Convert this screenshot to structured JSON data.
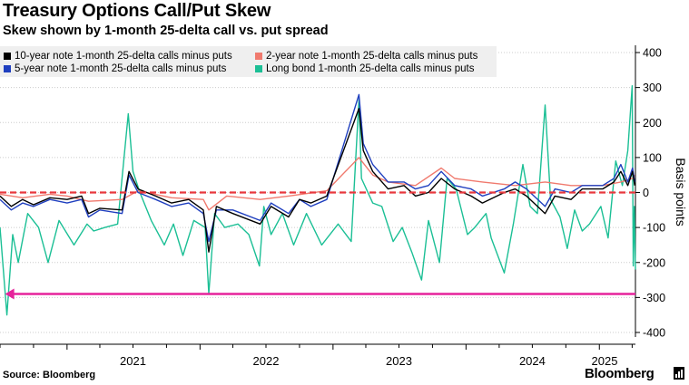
{
  "header": {
    "title": "Treasury Options Call/Put Skew",
    "subtitle": "Skew shown by 1-month 25-delta call vs. put spread"
  },
  "footer": {
    "source": "Source: Bloomberg",
    "brand": "Bloomberg"
  },
  "colors": {
    "ten_year": "#000000",
    "two_year": "#f07a6e",
    "five_year": "#1f3fbf",
    "long_bond": "#1bbf95",
    "zero_line": "#e8383d",
    "arrow": "#e6229b",
    "grid": "#cccccc"
  },
  "chart_data": {
    "type": "line",
    "title": "Treasury Options Call/Put Skew",
    "subtitle": "Skew shown by 1-month 25-delta call vs. put spread",
    "xlabel": "",
    "ylabel": "Basis points",
    "ylim": [
      -400,
      400
    ],
    "yticks": [
      400,
      300,
      200,
      100,
      0,
      -100,
      -200,
      -300,
      -400
    ],
    "x_tick_labels": [
      "2021",
      "2022",
      "2023",
      "2024",
      "2025"
    ],
    "xlim": [
      "2020-07-01",
      "2025-04-10"
    ],
    "grid": "horizontal dotted",
    "legend_position": "top-left",
    "reference_line": {
      "y": 0,
      "style": "dashed"
    },
    "annotation": {
      "type": "arrow",
      "y": -290,
      "from": "2025-04-10",
      "to": "2020-07-15"
    },
    "series": [
      {
        "name": "10-year note 1-month 25-delta calls minus puts",
        "points": [
          [
            "2020-07-01",
            -10
          ],
          [
            "2020-08-01",
            -40
          ],
          [
            "2020-09-01",
            -20
          ],
          [
            "2020-10-01",
            -35
          ],
          [
            "2020-11-15",
            -15
          ],
          [
            "2021-01-01",
            -20
          ],
          [
            "2021-02-10",
            -10
          ],
          [
            "2021-03-01",
            -60
          ],
          [
            "2021-04-01",
            -45
          ],
          [
            "2021-06-01",
            -50
          ],
          [
            "2021-06-20",
            60
          ],
          [
            "2021-07-15",
            10
          ],
          [
            "2021-09-01",
            -10
          ],
          [
            "2021-10-15",
            -30
          ],
          [
            "2021-12-01",
            -20
          ],
          [
            "2022-01-10",
            -50
          ],
          [
            "2022-01-25",
            -170
          ],
          [
            "2022-02-15",
            -40
          ],
          [
            "2022-04-01",
            -60
          ],
          [
            "2022-06-15",
            -90
          ],
          [
            "2022-07-15",
            -40
          ],
          [
            "2022-09-01",
            -70
          ],
          [
            "2022-10-01",
            -20
          ],
          [
            "2022-11-01",
            -30
          ],
          [
            "2022-12-15",
            -10
          ],
          [
            "2023-03-13",
            240
          ],
          [
            "2023-03-25",
            120
          ],
          [
            "2023-04-20",
            60
          ],
          [
            "2023-06-01",
            10
          ],
          [
            "2023-07-15",
            20
          ],
          [
            "2023-08-15",
            -10
          ],
          [
            "2023-09-20",
            0
          ],
          [
            "2023-10-25",
            40
          ],
          [
            "2023-12-01",
            10
          ],
          [
            "2024-01-15",
            -10
          ],
          [
            "2024-02-15",
            -30
          ],
          [
            "2024-04-15",
            0
          ],
          [
            "2024-05-15",
            10
          ],
          [
            "2024-06-15",
            -10
          ],
          [
            "2024-08-05",
            -60
          ],
          [
            "2024-09-01",
            -10
          ],
          [
            "2024-10-15",
            -20
          ],
          [
            "2024-11-15",
            10
          ],
          [
            "2025-01-10",
            10
          ],
          [
            "2025-02-10",
            30
          ],
          [
            "2025-03-01",
            60
          ],
          [
            "2025-03-20",
            20
          ],
          [
            "2025-04-02",
            60
          ],
          [
            "2025-04-05",
            40
          ],
          [
            "2025-04-08",
            20
          ]
        ]
      },
      {
        "name": "2-year note 1-month 25-delta calls minus puts",
        "points": [
          [
            "2020-07-01",
            -5
          ],
          [
            "2020-09-01",
            -15
          ],
          [
            "2020-11-15",
            -5
          ],
          [
            "2021-01-01",
            -10
          ],
          [
            "2021-03-01",
            -25
          ],
          [
            "2021-06-01",
            -20
          ],
          [
            "2021-07-15",
            5
          ],
          [
            "2021-10-15",
            -15
          ],
          [
            "2022-01-10",
            -20
          ],
          [
            "2022-01-25",
            -50
          ],
          [
            "2022-03-15",
            -10
          ],
          [
            "2022-06-15",
            -20
          ],
          [
            "2022-09-01",
            -10
          ],
          [
            "2022-12-15",
            5
          ],
          [
            "2023-03-13",
            100
          ],
          [
            "2023-04-20",
            50
          ],
          [
            "2023-06-01",
            30
          ],
          [
            "2023-08-15",
            20
          ],
          [
            "2023-10-25",
            70
          ],
          [
            "2023-12-01",
            40
          ],
          [
            "2024-02-15",
            30
          ],
          [
            "2024-05-15",
            20
          ],
          [
            "2024-08-05",
            30
          ],
          [
            "2024-10-15",
            20
          ],
          [
            "2025-01-10",
            20
          ],
          [
            "2025-03-01",
            30
          ],
          [
            "2025-04-02",
            40
          ],
          [
            "2025-04-08",
            50
          ]
        ]
      },
      {
        "name": "5-year note 1-month 25-delta calls minus puts",
        "points": [
          [
            "2020-07-01",
            -20
          ],
          [
            "2020-08-01",
            -50
          ],
          [
            "2020-09-01",
            -30
          ],
          [
            "2020-10-01",
            -40
          ],
          [
            "2020-11-15",
            -20
          ],
          [
            "2021-01-01",
            -30
          ],
          [
            "2021-02-10",
            -20
          ],
          [
            "2021-03-01",
            -70
          ],
          [
            "2021-04-01",
            -50
          ],
          [
            "2021-06-01",
            -60
          ],
          [
            "2021-06-20",
            50
          ],
          [
            "2021-07-15",
            0
          ],
          [
            "2021-09-01",
            -20
          ],
          [
            "2021-10-15",
            -40
          ],
          [
            "2021-12-01",
            -30
          ],
          [
            "2022-01-10",
            -60
          ],
          [
            "2022-01-25",
            -140
          ],
          [
            "2022-02-15",
            -50
          ],
          [
            "2022-04-01",
            -50
          ],
          [
            "2022-06-15",
            -80
          ],
          [
            "2022-07-15",
            -30
          ],
          [
            "2022-09-01",
            -60
          ],
          [
            "2022-10-01",
            -20
          ],
          [
            "2022-11-01",
            -40
          ],
          [
            "2022-12-15",
            -20
          ],
          [
            "2023-03-13",
            280
          ],
          [
            "2023-03-25",
            140
          ],
          [
            "2023-04-20",
            80
          ],
          [
            "2023-06-01",
            30
          ],
          [
            "2023-07-15",
            30
          ],
          [
            "2023-08-15",
            10
          ],
          [
            "2023-09-20",
            20
          ],
          [
            "2023-10-25",
            60
          ],
          [
            "2023-12-01",
            20
          ],
          [
            "2024-01-15",
            10
          ],
          [
            "2024-02-15",
            -10
          ],
          [
            "2024-04-15",
            10
          ],
          [
            "2024-05-15",
            30
          ],
          [
            "2024-06-15",
            10
          ],
          [
            "2024-08-05",
            -40
          ],
          [
            "2024-09-01",
            10
          ],
          [
            "2024-10-15",
            0
          ],
          [
            "2024-11-15",
            20
          ],
          [
            "2025-01-10",
            20
          ],
          [
            "2025-02-10",
            40
          ],
          [
            "2025-03-01",
            80
          ],
          [
            "2025-03-20",
            30
          ],
          [
            "2025-04-02",
            70
          ],
          [
            "2025-04-05",
            50
          ],
          [
            "2025-04-08",
            30
          ]
        ]
      },
      {
        "name": "Long bond 1-month 25-delta calls minus puts",
        "points": [
          [
            "2020-07-01",
            -100
          ],
          [
            "2020-07-20",
            -350
          ],
          [
            "2020-08-05",
            -120
          ],
          [
            "2020-08-20",
            -200
          ],
          [
            "2020-09-15",
            -60
          ],
          [
            "2020-10-15",
            -100
          ],
          [
            "2020-11-10",
            -200
          ],
          [
            "2020-12-10",
            -80
          ],
          [
            "2021-01-20",
            -150
          ],
          [
            "2021-02-25",
            -90
          ],
          [
            "2021-03-15",
            -110
          ],
          [
            "2021-04-15",
            -100
          ],
          [
            "2021-05-20",
            -90
          ],
          [
            "2021-06-18",
            225
          ],
          [
            "2021-07-01",
            60
          ],
          [
            "2021-07-20",
            0
          ],
          [
            "2021-08-20",
            -80
          ],
          [
            "2021-09-25",
            -150
          ],
          [
            "2021-10-20",
            -90
          ],
          [
            "2021-11-15",
            -180
          ],
          [
            "2021-12-15",
            -80
          ],
          [
            "2022-01-15",
            -100
          ],
          [
            "2022-01-25",
            -290
          ],
          [
            "2022-02-10",
            -60
          ],
          [
            "2022-03-10",
            -100
          ],
          [
            "2022-04-15",
            -90
          ],
          [
            "2022-05-15",
            -120
          ],
          [
            "2022-06-13",
            -210
          ],
          [
            "2022-06-25",
            -40
          ],
          [
            "2022-07-15",
            -120
          ],
          [
            "2022-08-15",
            -60
          ],
          [
            "2022-09-15",
            -150
          ],
          [
            "2022-10-20",
            -60
          ],
          [
            "2022-12-01",
            -150
          ],
          [
            "2023-01-15",
            -90
          ],
          [
            "2023-02-20",
            -140
          ],
          [
            "2023-03-13",
            265
          ],
          [
            "2023-03-20",
            40
          ],
          [
            "2023-04-20",
            -30
          ],
          [
            "2023-05-15",
            -40
          ],
          [
            "2023-06-15",
            -140
          ],
          [
            "2023-07-10",
            -100
          ],
          [
            "2023-08-05",
            -170
          ],
          [
            "2023-09-01",
            -250
          ],
          [
            "2023-09-20",
            -80
          ],
          [
            "2023-10-20",
            -200
          ],
          [
            "2023-11-10",
            40
          ],
          [
            "2023-12-05",
            10
          ],
          [
            "2024-01-05",
            -120
          ],
          [
            "2024-01-25",
            -100
          ],
          [
            "2024-02-25",
            -60
          ],
          [
            "2024-03-10",
            -130
          ],
          [
            "2024-04-15",
            -230
          ],
          [
            "2024-05-10",
            -90
          ],
          [
            "2024-06-05",
            80
          ],
          [
            "2024-06-25",
            -40
          ],
          [
            "2024-07-15",
            -60
          ],
          [
            "2024-08-05",
            250
          ],
          [
            "2024-08-20",
            -20
          ],
          [
            "2024-09-15",
            -70
          ],
          [
            "2024-10-05",
            -160
          ],
          [
            "2024-10-25",
            -50
          ],
          [
            "2024-11-15",
            -110
          ],
          [
            "2024-12-05",
            -90
          ],
          [
            "2025-01-05",
            -40
          ],
          [
            "2025-01-25",
            -130
          ],
          [
            "2025-02-15",
            90
          ],
          [
            "2025-03-05",
            20
          ],
          [
            "2025-03-20",
            120
          ],
          [
            "2025-04-01",
            305
          ],
          [
            "2025-04-04",
            -210
          ],
          [
            "2025-04-07",
            -40
          ],
          [
            "2025-04-10",
            -220
          ]
        ]
      }
    ]
  }
}
